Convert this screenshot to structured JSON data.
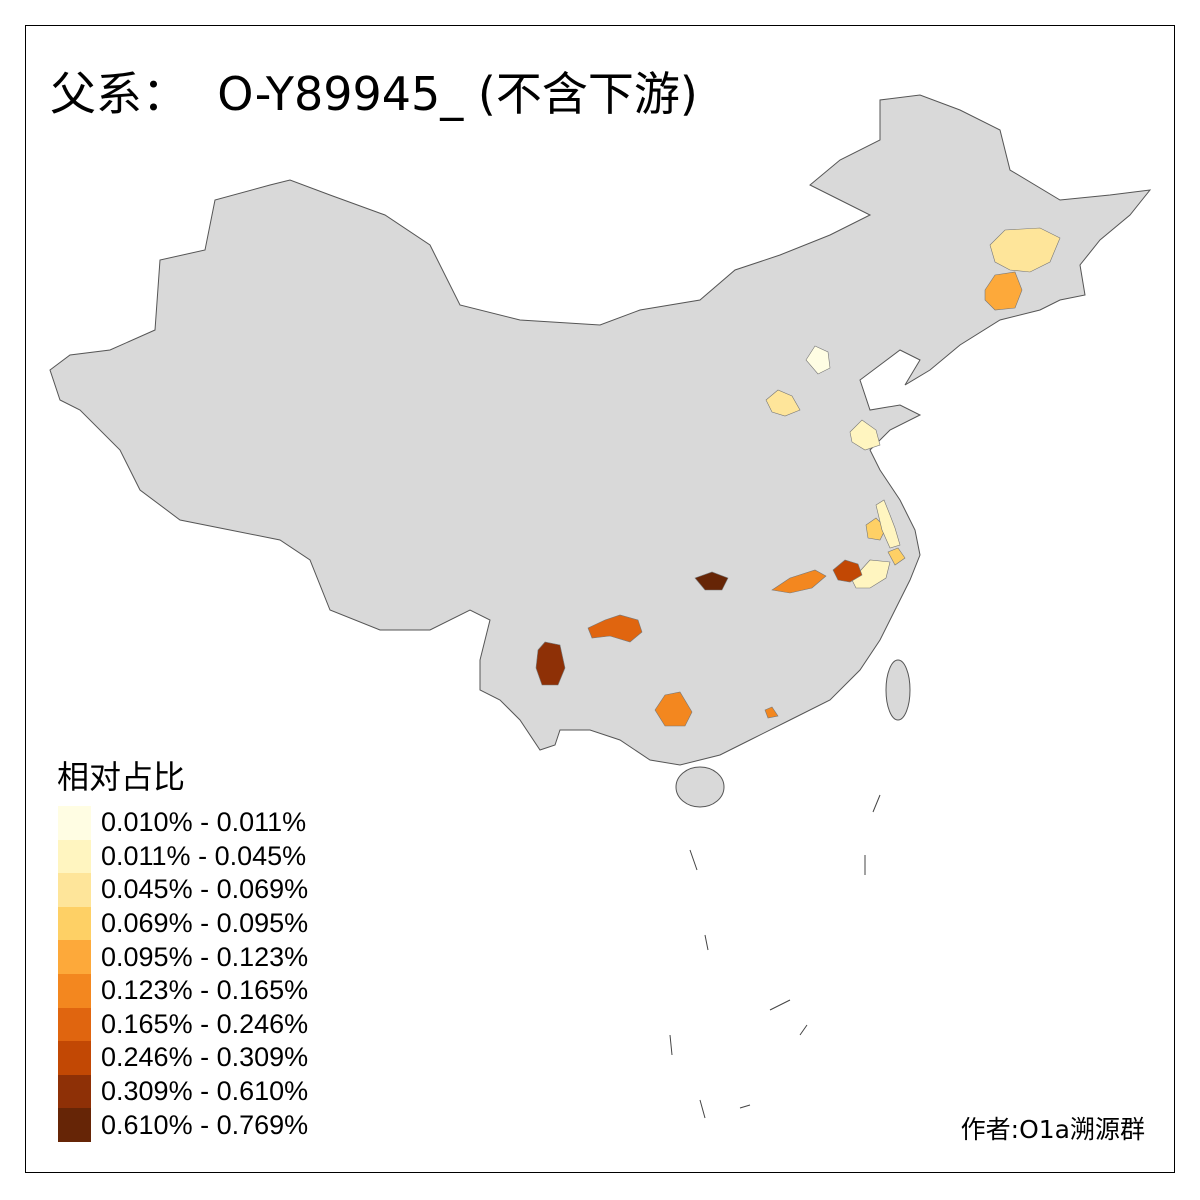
{
  "title": "父系：  O-Y89945_ (不含下游)",
  "legend": {
    "title": "相对占比",
    "bins": [
      {
        "label": "0.010% - 0.011%",
        "color": "#FFFDE3"
      },
      {
        "label": "0.011% - 0.045%",
        "color": "#FFF5C0"
      },
      {
        "label": "0.045% - 0.069%",
        "color": "#FEE59A"
      },
      {
        "label": "0.069% - 0.095%",
        "color": "#FED065"
      },
      {
        "label": "0.095% - 0.123%",
        "color": "#FDA93A"
      },
      {
        "label": "0.123% - 0.165%",
        "color": "#F3871F"
      },
      {
        "label": "0.165% - 0.246%",
        "color": "#E0650F"
      },
      {
        "label": "0.246% - 0.309%",
        "color": "#C24804"
      },
      {
        "label": "0.309% - 0.610%",
        "color": "#8E3006"
      },
      {
        "label": "0.610% - 0.769%",
        "color": "#662506"
      }
    ]
  },
  "map": {
    "base_color": "#D9D9D9",
    "border_color": "#666666"
  },
  "author": "作者:O1a溯源群"
}
